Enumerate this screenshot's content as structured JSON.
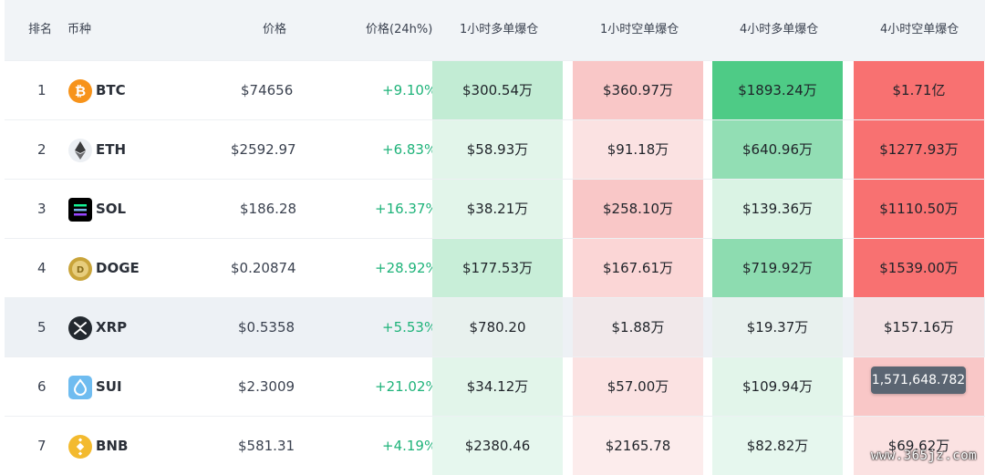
{
  "headers": {
    "rank": "排名",
    "coin": "币种",
    "price": "价格",
    "change": "价格(24h%)",
    "long1h": "1小时多单爆仓",
    "short1h": "1小时空单爆仓",
    "long4h": "4小时多单爆仓",
    "short4h": "4小时空单爆仓"
  },
  "rows": [
    {
      "rank": "1",
      "symbol": "BTC",
      "price": "$74656",
      "change": "+9.10%",
      "long1h": "$300.54万",
      "short1h": "$360.97万",
      "long4h": "$1893.24万",
      "short4h": "$1.71亿",
      "icon": "btc-icon"
    },
    {
      "rank": "2",
      "symbol": "ETH",
      "price": "$2592.97",
      "change": "+6.83%",
      "long1h": "$58.93万",
      "short1h": "$91.18万",
      "long4h": "$640.96万",
      "short4h": "$1277.93万",
      "icon": "eth-icon"
    },
    {
      "rank": "3",
      "symbol": "SOL",
      "price": "$186.28",
      "change": "+16.37%",
      "long1h": "$38.21万",
      "short1h": "$258.10万",
      "long4h": "$139.36万",
      "short4h": "$1110.50万",
      "icon": "sol-icon"
    },
    {
      "rank": "4",
      "symbol": "DOGE",
      "price": "$0.20874",
      "change": "+28.92%",
      "long1h": "$177.53万",
      "short1h": "$167.61万",
      "long4h": "$719.92万",
      "short4h": "$1539.00万",
      "icon": "doge-icon"
    },
    {
      "rank": "5",
      "symbol": "XRP",
      "price": "$0.5358",
      "change": "+5.53%",
      "long1h": "$780.20",
      "short1h": "$1.88万",
      "long4h": "$19.37万",
      "short4h": "$157.16万",
      "icon": "xrp-icon"
    },
    {
      "rank": "6",
      "symbol": "SUI",
      "price": "$2.3009",
      "change": "+21.02%",
      "long1h": "$34.12万",
      "short1h": "$57.00万",
      "long4h": "$109.94万",
      "short4h": "",
      "icon": "sui-icon"
    },
    {
      "rank": "7",
      "symbol": "BNB",
      "price": "$581.31",
      "change": "+4.19%",
      "long1h": "$2380.46",
      "short1h": "$2165.78",
      "long4h": "$82.82万",
      "short4h": "$69.62万",
      "icon": "bnb-icon"
    }
  ],
  "tooltip": "1,571,648.782",
  "watermark": "www.365jz.com",
  "colors": {
    "positive": "#1fb37a",
    "long_strong": "#4ecb86",
    "short_strong": "#f87171"
  }
}
